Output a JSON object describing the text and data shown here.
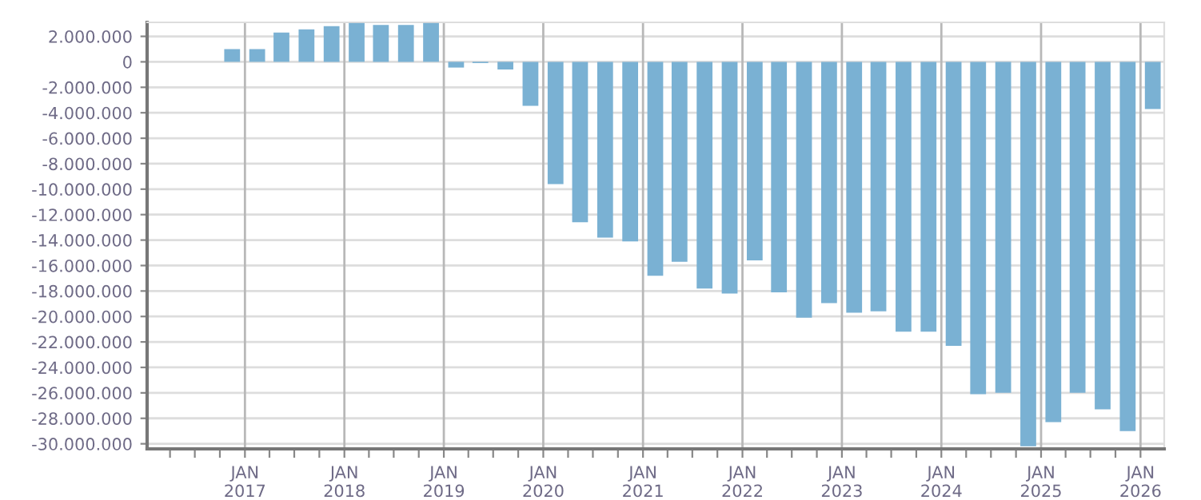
{
  "chart_data": {
    "type": "bar",
    "color": "#7ab1d3",
    "x": [
      "2016-11-15",
      "2017-02-15",
      "2017-05-15",
      "2017-08-15",
      "2017-11-15",
      "2018-02-15",
      "2018-05-15",
      "2018-08-15",
      "2018-11-15",
      "2019-02-15",
      "2019-05-15",
      "2019-08-15",
      "2019-11-15",
      "2020-02-15",
      "2020-05-15",
      "2020-08-15",
      "2020-11-15",
      "2021-02-15",
      "2021-05-15",
      "2021-08-15",
      "2021-11-15",
      "2022-02-15",
      "2022-05-15",
      "2022-08-15",
      "2022-11-15",
      "2023-02-15",
      "2023-05-15",
      "2023-08-15",
      "2023-11-15",
      "2024-02-15",
      "2024-05-15",
      "2024-08-15",
      "2024-11-15",
      "2025-02-15",
      "2025-05-15",
      "2025-08-15",
      "2025-11-15",
      "2026-02-15"
    ],
    "values": [
      1000000,
      1000000,
      2300000,
      2550000,
      2800000,
      3050000,
      2900000,
      2900000,
      3050000,
      -450000,
      -100000,
      -600000,
      -3450000,
      -9600000,
      -12600000,
      -13800000,
      -14100000,
      -16800000,
      -15700000,
      -17800000,
      -18200000,
      -15600000,
      -18100000,
      -20100000,
      -18950000,
      -19700000,
      -19600000,
      -21200000,
      -21200000,
      -22300000,
      -26100000,
      -26000000,
      -30200000,
      -28300000,
      -26000000,
      -27300000,
      -29000000,
      -3700000
    ],
    "xlim": [
      "2016-01-08",
      "2026-03-29"
    ],
    "xticks": [
      {
        "value": "2016-04-01",
        "label": null
      },
      {
        "value": "2016-07-01",
        "label": null
      },
      {
        "value": "2016-10-01",
        "label": null
      },
      {
        "value": "2017-01-01",
        "label": "JAN\n2017"
      },
      {
        "value": "2017-04-01",
        "label": null
      },
      {
        "value": "2017-07-01",
        "label": null
      },
      {
        "value": "2017-10-01",
        "label": null
      },
      {
        "value": "2018-01-01",
        "label": "JAN\n2018"
      },
      {
        "value": "2018-04-01",
        "label": null
      },
      {
        "value": "2018-07-01",
        "label": null
      },
      {
        "value": "2018-10-01",
        "label": null
      },
      {
        "value": "2019-01-01",
        "label": "JAN\n2019"
      },
      {
        "value": "2019-04-01",
        "label": null
      },
      {
        "value": "2019-07-01",
        "label": null
      },
      {
        "value": "2019-10-01",
        "label": null
      },
      {
        "value": "2020-01-01",
        "label": "JAN\n2020"
      },
      {
        "value": "2020-04-01",
        "label": null
      },
      {
        "value": "2020-07-01",
        "label": null
      },
      {
        "value": "2020-10-01",
        "label": null
      },
      {
        "value": "2021-01-01",
        "label": "JAN\n2021"
      },
      {
        "value": "2021-04-01",
        "label": null
      },
      {
        "value": "2021-07-01",
        "label": null
      },
      {
        "value": "2021-10-01",
        "label": null
      },
      {
        "value": "2022-01-01",
        "label": "JAN\n2022"
      },
      {
        "value": "2022-04-01",
        "label": null
      },
      {
        "value": "2022-07-01",
        "label": null
      },
      {
        "value": "2022-10-01",
        "label": null
      },
      {
        "value": "2023-01-01",
        "label": "JAN\n2023"
      },
      {
        "value": "2023-04-01",
        "label": null
      },
      {
        "value": "2023-07-01",
        "label": null
      },
      {
        "value": "2023-10-01",
        "label": null
      },
      {
        "value": "2024-01-01",
        "label": "JAN\n2024"
      },
      {
        "value": "2024-04-01",
        "label": null
      },
      {
        "value": "2024-07-01",
        "label": null
      },
      {
        "value": "2024-10-01",
        "label": null
      },
      {
        "value": "2025-01-01",
        "label": "JAN\n2025"
      },
      {
        "value": "2025-04-01",
        "label": null
      },
      {
        "value": "2025-07-01",
        "label": null
      },
      {
        "value": "2025-10-01",
        "label": null
      },
      {
        "value": "2026-01-01",
        "label": "JAN\n2026"
      }
    ],
    "ylim": [
      -30400000,
      3100000
    ],
    "yticks": [
      {
        "value": 2000000,
        "label": "2.000.000"
      },
      {
        "value": 0,
        "label": "0"
      },
      {
        "value": -2000000,
        "label": "-2.000.000"
      },
      {
        "value": -4000000,
        "label": "-4.000.000"
      },
      {
        "value": -6000000,
        "label": "-6.000.000"
      },
      {
        "value": -8000000,
        "label": "-8.000.000"
      },
      {
        "value": -10000000,
        "label": "-10.000.000"
      },
      {
        "value": -12000000,
        "label": "-12.000.000"
      },
      {
        "value": -14000000,
        "label": "-14.000.000"
      },
      {
        "value": -16000000,
        "label": "-16.000.000"
      },
      {
        "value": -18000000,
        "label": "-18.000.000"
      },
      {
        "value": -20000000,
        "label": "-20.000.000"
      },
      {
        "value": -22000000,
        "label": "-22.000.000"
      },
      {
        "value": -24000000,
        "label": "-24.000.000"
      },
      {
        "value": -26000000,
        "label": "-26.000.000"
      },
      {
        "value": -28000000,
        "label": "-28.000.000"
      },
      {
        "value": -30000000,
        "label": "-30.000.000"
      }
    ],
    "grid": true,
    "legend": false
  }
}
